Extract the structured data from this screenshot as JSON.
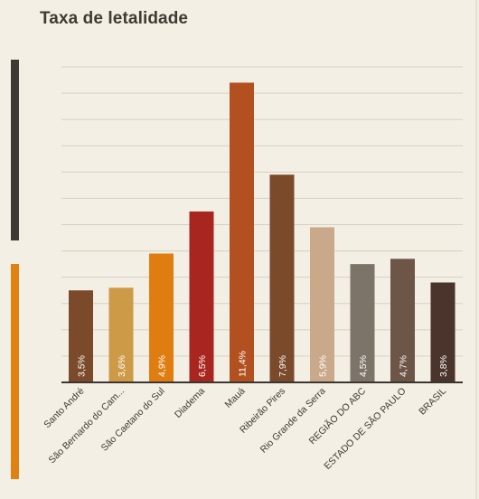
{
  "chart_data": {
    "type": "bar",
    "title": "Taxa de letalidade",
    "categories": [
      "Santo André",
      "São Bernardo do Cam...",
      "São Caetano do Sul",
      "Diadema",
      "Mauá",
      "Ribeirão Pires",
      "Rio Grande da Serra",
      "REGIÃO DO ABC",
      "ESTADO DE SÃO PAULO",
      "BRASIL"
    ],
    "values": [
      3.5,
      3.6,
      4.9,
      6.5,
      11.4,
      7.9,
      5.9,
      4.5,
      4.7,
      3.8
    ],
    "value_labels": [
      "3,5%",
      "3,6%",
      "4,9%",
      "6,5%",
      "11,4%",
      "7,9%",
      "5,9%",
      "4,5%",
      "4,7%",
      "3,8%"
    ],
    "colors": [
      "#7a4a2a",
      "#cd9a48",
      "#e07d10",
      "#a8261f",
      "#b3501f",
      "#7a4a2a",
      "#c9a989",
      "#7c7468",
      "#6d5548",
      "#4a342c"
    ],
    "ylim": [
      0,
      12
    ],
    "grid": true,
    "xlabel": "",
    "ylabel": ""
  },
  "accent_colors": [
    "#3e3a33",
    "#e0820f"
  ]
}
